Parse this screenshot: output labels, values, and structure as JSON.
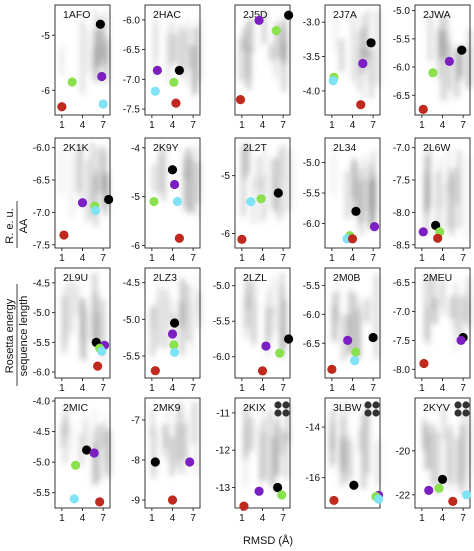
{
  "figure": {
    "xlabel": "RMSD (Å)",
    "ylabel_top": "Rosetta energy",
    "ylabel_frac_num": "R. e. u.",
    "ylabel_frac_den": "AA",
    "ylabel_bottom": "sequence length"
  },
  "point_colors": {
    "red": "#c0291d",
    "green": "#8be04e",
    "purple": "#7b1fc2",
    "black": "#000000",
    "cyan": "#7fe3f5",
    "gray": "#5f5f5f"
  },
  "chart_data": [
    {
      "type": "scatter",
      "title": "1AFO",
      "xlim": [
        0,
        8
      ],
      "xticks": [
        1,
        4,
        7
      ],
      "ylim": [
        -6.45,
        -4.45
      ],
      "yticks": [
        -5,
        -6
      ],
      "points": [
        {
          "color": "red",
          "x": 1.0,
          "y": -6.3
        },
        {
          "color": "green",
          "x": 2.5,
          "y": -5.85
        },
        {
          "color": "purple",
          "x": 6.8,
          "y": -5.75
        },
        {
          "color": "black",
          "x": 6.6,
          "y": -4.8
        },
        {
          "color": "cyan",
          "x": 7.0,
          "y": -6.25
        }
      ],
      "cloud": {
        "x_range": [
          1,
          8
        ],
        "y_range": [
          -6.2,
          -4.5
        ]
      }
    },
    {
      "type": "scatter",
      "title": "2HAC",
      "xlim": [
        0,
        8
      ],
      "xticks": [
        1,
        4,
        7
      ],
      "ylim": [
        -7.6,
        -5.75
      ],
      "yticks": [
        -6.0,
        -6.5,
        -7.0,
        -7.5
      ],
      "points": [
        {
          "color": "purple",
          "x": 1.8,
          "y": -6.85
        },
        {
          "color": "black",
          "x": 5.0,
          "y": -6.85
        },
        {
          "color": "green",
          "x": 4.2,
          "y": -7.05
        },
        {
          "color": "cyan",
          "x": 1.5,
          "y": -7.2
        },
        {
          "color": "red",
          "x": 4.5,
          "y": -7.4
        }
      ],
      "cloud": {
        "x_range": [
          1,
          8
        ],
        "y_range": [
          -7.4,
          -5.8
        ]
      }
    },
    {
      "type": "scatter",
      "title": "2J5D",
      "xlim": [
        0,
        8
      ],
      "xticks": [
        1,
        4,
        7
      ],
      "ylim": [
        -7.9,
        -5.75
      ],
      "yticks": [],
      "points": [
        {
          "color": "black",
          "x": 7.8,
          "y": -5.95
        },
        {
          "color": "purple",
          "x": 3.5,
          "y": -6.05
        },
        {
          "color": "green",
          "x": 6.0,
          "y": -6.25
        },
        {
          "color": "red",
          "x": 0.8,
          "y": -7.6
        }
      ],
      "cloud": {
        "x_range": [
          0.5,
          8
        ],
        "y_range": [
          -7.5,
          -5.8
        ]
      }
    },
    {
      "type": "scatter",
      "title": "2J7A",
      "xlim": [
        0,
        8
      ],
      "xticks": [
        1,
        4,
        7
      ],
      "ylim": [
        -4.35,
        -2.75
      ],
      "yticks": [
        -3.0,
        -3.5,
        -4.0
      ],
      "points": [
        {
          "color": "black",
          "x": 6.7,
          "y": -3.3
        },
        {
          "color": "purple",
          "x": 5.5,
          "y": -3.6
        },
        {
          "color": "green",
          "x": 1.3,
          "y": -3.8
        },
        {
          "color": "cyan",
          "x": 1.2,
          "y": -3.85
        },
        {
          "color": "red",
          "x": 5.2,
          "y": -4.2
        }
      ],
      "cloud": {
        "x_range": [
          1,
          8
        ],
        "y_range": [
          -4.2,
          -2.8
        ]
      }
    },
    {
      "type": "scatter",
      "title": "2JWA",
      "xlim": [
        0,
        8
      ],
      "xticks": [
        1,
        4,
        7
      ],
      "ylim": [
        -6.85,
        -4.9
      ],
      "yticks": [
        -5.0,
        -5.5,
        -6.0,
        -6.5
      ],
      "points": [
        {
          "color": "black",
          "x": 6.8,
          "y": -5.7
        },
        {
          "color": "purple",
          "x": 5.0,
          "y": -5.9
        },
        {
          "color": "green",
          "x": 2.6,
          "y": -6.1
        },
        {
          "color": "red",
          "x": 1.2,
          "y": -6.75
        }
      ],
      "cloud": {
        "x_range": [
          1,
          8
        ],
        "y_range": [
          -6.7,
          -5.0
        ]
      }
    },
    {
      "type": "scatter",
      "title": "2K1K",
      "xlim": [
        0,
        8
      ],
      "xticks": [
        1,
        4,
        7
      ],
      "ylim": [
        -7.55,
        -5.85
      ],
      "yticks": [
        -6.0,
        -6.5,
        -7.0,
        -7.5
      ],
      "points": [
        {
          "color": "black",
          "x": 7.8,
          "y": -6.8
        },
        {
          "color": "purple",
          "x": 4.0,
          "y": -6.85
        },
        {
          "color": "green",
          "x": 5.8,
          "y": -6.9
        },
        {
          "color": "cyan",
          "x": 5.9,
          "y": -6.97
        },
        {
          "color": "red",
          "x": 1.3,
          "y": -7.35
        }
      ],
      "cloud": {
        "x_range": [
          1,
          8
        ],
        "y_range": [
          -7.3,
          -5.9
        ]
      }
    },
    {
      "type": "scatter",
      "title": "2K9Y",
      "xlim": [
        0,
        8
      ],
      "xticks": [
        1,
        4,
        7
      ],
      "ylim": [
        -6.05,
        -3.8
      ],
      "yticks": [
        -4,
        -5,
        -6
      ],
      "points": [
        {
          "color": "black",
          "x": 4.0,
          "y": -4.45
        },
        {
          "color": "purple",
          "x": 4.3,
          "y": -4.75
        },
        {
          "color": "green",
          "x": 1.3,
          "y": -5.1
        },
        {
          "color": "cyan",
          "x": 4.7,
          "y": -5.1
        },
        {
          "color": "red",
          "x": 5.0,
          "y": -5.85
        }
      ],
      "cloud": {
        "x_range": [
          1,
          8
        ],
        "y_range": [
          -5.5,
          -3.9
        ]
      }
    },
    {
      "type": "scatter",
      "title": "2L2T",
      "xlim": [
        0,
        8
      ],
      "xticks": [
        1,
        4,
        7
      ],
      "ylim": [
        -6.25,
        -4.35
      ],
      "yticks": [
        -5,
        -6
      ],
      "points": [
        {
          "color": "black",
          "x": 6.3,
          "y": -5.3
        },
        {
          "color": "green",
          "x": 3.8,
          "y": -5.4
        },
        {
          "color": "cyan",
          "x": 2.3,
          "y": -5.45
        },
        {
          "color": "red",
          "x": 1.0,
          "y": -6.1
        }
      ],
      "cloud": {
        "x_range": [
          1,
          8
        ],
        "y_range": [
          -6.0,
          -4.4
        ]
      }
    },
    {
      "type": "scatter",
      "title": "2L34",
      "xlim": [
        0,
        8
      ],
      "xticks": [
        1,
        4,
        7
      ],
      "ylim": [
        -6.4,
        -4.6
      ],
      "yticks": [
        -5.0,
        -5.5,
        -6.0
      ],
      "points": [
        {
          "color": "black",
          "x": 4.5,
          "y": -5.8
        },
        {
          "color": "purple",
          "x": 7.2,
          "y": -6.05
        },
        {
          "color": "green",
          "x": 3.6,
          "y": -6.2
        },
        {
          "color": "cyan",
          "x": 3.2,
          "y": -6.25
        },
        {
          "color": "red",
          "x": 4.0,
          "y": -6.25
        }
      ],
      "cloud": {
        "x_range": [
          1,
          8
        ],
        "y_range": [
          -6.3,
          -4.7
        ]
      }
    },
    {
      "type": "scatter",
      "title": "2L6W",
      "xlim": [
        0,
        8
      ],
      "xticks": [
        1,
        4,
        7
      ],
      "ylim": [
        -8.55,
        -6.85
      ],
      "yticks": [
        -7.0,
        -7.5,
        -8.0,
        -8.5
      ],
      "points": [
        {
          "color": "black",
          "x": 3.0,
          "y": -8.2
        },
        {
          "color": "purple",
          "x": 1.2,
          "y": -8.3
        },
        {
          "color": "green",
          "x": 3.6,
          "y": -8.3
        },
        {
          "color": "red",
          "x": 3.3,
          "y": -8.4
        }
      ],
      "cloud": {
        "x_range": [
          1,
          8
        ],
        "y_range": [
          -8.5,
          -6.9
        ]
      }
    },
    {
      "type": "scatter",
      "title": "2L9U",
      "xlim": [
        0,
        8
      ],
      "xticks": [
        1,
        4,
        7
      ],
      "ylim": [
        -6.1,
        -4.25
      ],
      "yticks": [
        -4.5,
        -5.0,
        -5.5,
        -6.0
      ],
      "points": [
        {
          "color": "black",
          "x": 6.0,
          "y": -5.5
        },
        {
          "color": "purple",
          "x": 7.2,
          "y": -5.55
        },
        {
          "color": "green",
          "x": 6.5,
          "y": -5.6
        },
        {
          "color": "cyan",
          "x": 6.8,
          "y": -5.65
        },
        {
          "color": "red",
          "x": 6.2,
          "y": -5.9
        }
      ],
      "cloud": {
        "x_range": [
          1,
          8
        ],
        "y_range": [
          -5.9,
          -4.3
        ]
      }
    },
    {
      "type": "scatter",
      "title": "2LZ3",
      "xlim": [
        0,
        8
      ],
      "xticks": [
        1,
        4,
        7
      ],
      "ylim": [
        -5.8,
        -4.3
      ],
      "yticks": [
        -4.5,
        -5.0,
        -5.5
      ],
      "points": [
        {
          "color": "black",
          "x": 4.3,
          "y": -5.05
        },
        {
          "color": "purple",
          "x": 4.0,
          "y": -5.2
        },
        {
          "color": "green",
          "x": 4.2,
          "y": -5.35
        },
        {
          "color": "cyan",
          "x": 4.3,
          "y": -5.45
        },
        {
          "color": "red",
          "x": 1.5,
          "y": -5.7
        }
      ],
      "cloud": {
        "x_range": [
          1,
          8
        ],
        "y_range": [
          -5.6,
          -4.35
        ]
      }
    },
    {
      "type": "scatter",
      "title": "2LZL",
      "xlim": [
        0,
        8
      ],
      "xticks": [
        1,
        4,
        7
      ],
      "ylim": [
        -6.3,
        -4.75
      ],
      "yticks": [
        -5.0,
        -5.5,
        -6.0
      ],
      "points": [
        {
          "color": "black",
          "x": 7.8,
          "y": -5.75
        },
        {
          "color": "purple",
          "x": 4.5,
          "y": -5.85
        },
        {
          "color": "green",
          "x": 6.5,
          "y": -5.95
        },
        {
          "color": "red",
          "x": 4.0,
          "y": -6.2
        }
      ],
      "cloud": {
        "x_range": [
          1,
          8
        ],
        "y_range": [
          -6.1,
          -4.8
        ]
      }
    },
    {
      "type": "scatter",
      "title": "2M0B",
      "xlim": [
        0,
        8
      ],
      "xticks": [
        1,
        4,
        7
      ],
      "ylim": [
        -7.1,
        -5.2
      ],
      "yticks": [
        -5.5,
        -6.0,
        -6.5
      ],
      "points": [
        {
          "color": "black",
          "x": 7.0,
          "y": -6.4
        },
        {
          "color": "purple",
          "x": 3.3,
          "y": -6.45
        },
        {
          "color": "green",
          "x": 4.5,
          "y": -6.65
        },
        {
          "color": "cyan",
          "x": 4.3,
          "y": -6.8
        },
        {
          "color": "red",
          "x": 1.0,
          "y": -6.95
        }
      ],
      "cloud": {
        "x_range": [
          1,
          8
        ],
        "y_range": [
          -6.9,
          -5.3
        ]
      }
    },
    {
      "type": "scatter",
      "title": "2MEU",
      "xlim": [
        0,
        8
      ],
      "xticks": [
        1,
        4,
        7
      ],
      "ylim": [
        -8.15,
        -6.25
      ],
      "yticks": [
        -6.5,
        -7.0,
        -7.5,
        -8.0
      ],
      "points": [
        {
          "color": "black",
          "x": 7.0,
          "y": -7.45
        },
        {
          "color": "purple",
          "x": 6.7,
          "y": -7.5
        },
        {
          "color": "red",
          "x": 1.3,
          "y": -7.9
        }
      ],
      "cloud": {
        "x_range": [
          1,
          8
        ],
        "y_range": [
          -7.8,
          -6.3
        ]
      }
    },
    {
      "type": "scatter",
      "title": "2MIC",
      "xlim": [
        0,
        8
      ],
      "xticks": [
        1,
        4,
        7
      ],
      "ylim": [
        -5.75,
        -3.95
      ],
      "yticks": [
        -4.0,
        -4.5,
        -5.0,
        -5.5
      ],
      "points": [
        {
          "color": "black",
          "x": 4.6,
          "y": -4.8
        },
        {
          "color": "purple",
          "x": 5.7,
          "y": -4.85
        },
        {
          "color": "green",
          "x": 3.0,
          "y": -5.05
        },
        {
          "color": "cyan",
          "x": 2.8,
          "y": -5.6
        },
        {
          "color": "red",
          "x": 6.5,
          "y": -5.65
        }
      ],
      "cloud": {
        "x_range": [
          1,
          8
        ],
        "y_range": [
          -5.5,
          -4.0
        ]
      }
    },
    {
      "type": "scatter",
      "title": "2MK9",
      "xlim": [
        0,
        8
      ],
      "xticks": [
        1,
        4,
        7
      ],
      "ylim": [
        -9.2,
        -6.45
      ],
      "yticks": [
        -7,
        -8,
        -9
      ],
      "points": [
        {
          "color": "black",
          "x": 1.5,
          "y": -8.05
        },
        {
          "color": "purple",
          "x": 6.5,
          "y": -8.05
        },
        {
          "color": "red",
          "x": 4.0,
          "y": -9.0
        }
      ],
      "cloud": {
        "x_range": [
          1,
          8
        ],
        "y_range": [
          -8.6,
          -6.5
        ]
      }
    },
    {
      "type": "scatter",
      "title": "2KIX",
      "xlim": [
        0,
        8
      ],
      "xticks": [
        1,
        4,
        7
      ],
      "ylim": [
        -13.55,
        -10.6
      ],
      "yticks": [
        -11,
        -12,
        -13
      ],
      "points": [
        {
          "color": "black",
          "x": 6.2,
          "y": -13.0
        },
        {
          "color": "purple",
          "x": 3.5,
          "y": -13.1
        },
        {
          "color": "green",
          "x": 6.8,
          "y": -13.2
        },
        {
          "color": "red",
          "x": 1.3,
          "y": -13.5
        }
      ],
      "cloud": {
        "x_range": [
          1,
          8
        ],
        "y_range": [
          -13.2,
          -10.7
        ]
      }
    },
    {
      "type": "scatter",
      "title": "3LBW",
      "xlim": [
        0,
        8
      ],
      "xticks": [],
      "ylim": [
        -17.2,
        -12.85
      ],
      "yticks": [
        -14,
        -16
      ],
      "points": [
        {
          "color": "black",
          "x": 4.2,
          "y": -16.3
        },
        {
          "color": "purple",
          "x": 7.8,
          "y": -16.7
        },
        {
          "color": "green",
          "x": 7.4,
          "y": -16.75
        },
        {
          "color": "cyan",
          "x": 7.8,
          "y": -16.85
        },
        {
          "color": "red",
          "x": 1.3,
          "y": -16.9
        }
      ],
      "cloud": {
        "x_range": [
          1,
          8
        ],
        "y_range": [
          -16.8,
          -12.9
        ]
      }
    },
    {
      "type": "scatter",
      "title": "2KYV",
      "xlim": [
        0,
        8
      ],
      "xticks": [
        1,
        4,
        7
      ],
      "ylim": [
        -22.6,
        -17.6
      ],
      "yticks": [
        -20,
        -22
      ],
      "points": [
        {
          "color": "black",
          "x": 4.0,
          "y": -21.3
        },
        {
          "color": "purple",
          "x": 2.0,
          "y": -21.8
        },
        {
          "color": "green",
          "x": 3.5,
          "y": -21.7
        },
        {
          "color": "cyan",
          "x": 7.5,
          "y": -22.0
        },
        {
          "color": "red",
          "x": 5.5,
          "y": -22.3
        }
      ],
      "cloud": {
        "x_range": [
          1,
          8
        ],
        "y_range": [
          -22.3,
          -17.7
        ]
      }
    }
  ],
  "multimer_markers": [
    {
      "panel": "2KIX",
      "dots": 4
    },
    {
      "panel": "3LBW",
      "dots": 4
    },
    {
      "panel": "2KYV",
      "dots": 4
    }
  ]
}
